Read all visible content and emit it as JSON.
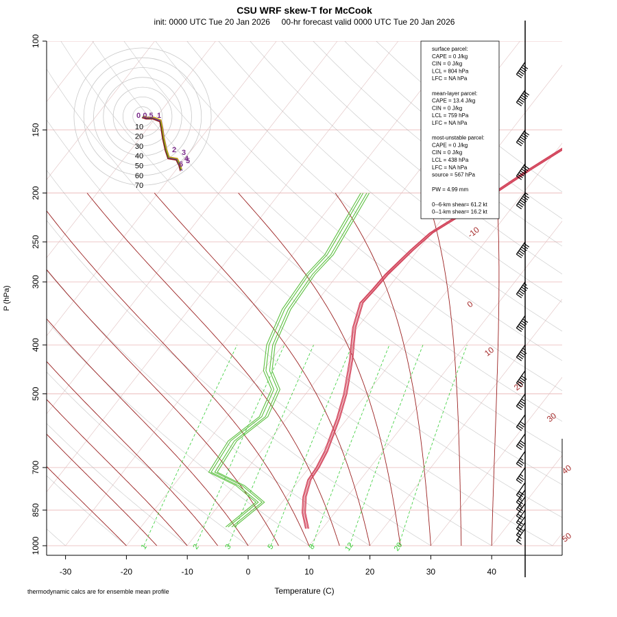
{
  "title": "CSU WRF skew-T for McCook",
  "subtitle": "init: 0000 UTC Tue 20 Jan 2026     00-hr forecast valid 0000 UTC Tue 20 Jan 2026",
  "footnote": "thermodynamic calcs are for ensemble mean profile",
  "colors": {
    "temperature": "#d2435a",
    "dewpoint": "#5bbf3f",
    "isotherm": "#a52a2a",
    "mixing_ratio": "#33cc33",
    "dry_adiabat": "#a0a0a0"
  },
  "stats": [
    "surface parcel:",
    "CAPE = 0 J/kg",
    "CIN = 0 J/kg",
    "LCL = 804 hPa",
    "LFC = NA hPa",
    "",
    "mean-layer parcel:",
    "CAPE = 13.4 J/kg",
    "CIN = 0 J/kg",
    "LCL = 759 hPa",
    "LFC = NA hPa",
    "",
    "most-unstable parcel:",
    "CAPE = 0 J/kg",
    "CIN = 0 J/kg",
    "LCL = 438 hPa",
    "LFC = NA hPa",
    "source = 567 hPa",
    "",
    "PW =  4.99 mm",
    "",
    "0--6-km shear= 61.2 kt",
    "0--1-km shear= 16.2 kt"
  ],
  "hodograph": {
    "ring_labels": [
      "10",
      "20",
      "30",
      "40",
      "50",
      "60",
      "70"
    ],
    "height_labels": [
      "0",
      "0.5",
      "1",
      "2",
      "3",
      "4",
      "5",
      "6"
    ]
  },
  "chart_data": {
    "type": "line",
    "xlabel": "Temperature (C)",
    "ylabel": "P (hPa)",
    "xlim": [
      -33,
      45
    ],
    "ylim": [
      1000,
      100
    ],
    "y_scale": "log",
    "x_ticks": [
      -30,
      -20,
      -10,
      0,
      10,
      20,
      30,
      40
    ],
    "y_ticks": [
      100,
      150,
      200,
      250,
      300,
      400,
      500,
      700,
      850,
      1000
    ],
    "isotherm_labels": [
      -10,
      0,
      10,
      20,
      30,
      40,
      50
    ],
    "mixing_ratio_labels": [
      "1",
      "2",
      "3",
      "5",
      "8",
      "12",
      "20"
    ],
    "series": [
      {
        "quantity": "temperature",
        "points": [
          [
            7.5,
            925
          ],
          [
            4.9,
            860
          ],
          [
            3.0,
            800
          ],
          [
            1.6,
            740
          ],
          [
            1.4,
            700
          ],
          [
            0.7,
            650
          ],
          [
            -1.5,
            560
          ],
          [
            -3.5,
            500
          ],
          [
            -6.8,
            430
          ],
          [
            -10.5,
            370
          ],
          [
            -12.5,
            330
          ],
          [
            -12.2,
            310
          ],
          [
            -12.0,
            290
          ],
          [
            -11.0,
            260
          ],
          [
            -10.0,
            240
          ],
          [
            -6.0,
            210
          ],
          [
            -2.0,
            180
          ],
          [
            2.0,
            157
          ],
          [
            4.5,
            141
          ],
          [
            7.0,
            129
          ],
          [
            10.5,
            118
          ],
          [
            13.0,
            111
          ]
        ]
      },
      {
        "quantity": "dewpoint",
        "points": [
          [
            -5.4,
            918
          ],
          [
            -3.6,
            820
          ],
          [
            -9.0,
            760
          ],
          [
            -15.2,
            715
          ],
          [
            -16.0,
            620
          ],
          [
            -14.0,
            555
          ],
          [
            -15.5,
            490
          ],
          [
            -19.2,
            450
          ],
          [
            -22.0,
            400
          ],
          [
            -24.0,
            340
          ],
          [
            -24.5,
            290
          ],
          [
            -24.0,
            265
          ],
          [
            -25.0,
            230
          ],
          [
            -26.0,
            200
          ]
        ]
      }
    ],
    "wind_barbs": [
      {
        "p": 925,
        "speed_kt": 15
      },
      {
        "p": 900,
        "speed_kt": 15
      },
      {
        "p": 875,
        "speed_kt": 20
      },
      {
        "p": 850,
        "speed_kt": 20
      },
      {
        "p": 825,
        "speed_kt": 20
      },
      {
        "p": 800,
        "speed_kt": 25
      },
      {
        "p": 775,
        "speed_kt": 25
      },
      {
        "p": 750,
        "speed_kt": 30
      },
      {
        "p": 700,
        "speed_kt": 35
      },
      {
        "p": 650,
        "speed_kt": 35
      },
      {
        "p": 600,
        "speed_kt": 40
      },
      {
        "p": 550,
        "speed_kt": 40
      },
      {
        "p": 500,
        "speed_kt": 45
      },
      {
        "p": 450,
        "speed_kt": 50
      },
      {
        "p": 400,
        "speed_kt": 55
      },
      {
        "p": 350,
        "speed_kt": 60
      },
      {
        "p": 300,
        "speed_kt": 65
      },
      {
        "p": 250,
        "speed_kt": 70
      },
      {
        "p": 200,
        "speed_kt": 75
      },
      {
        "p": 175,
        "speed_kt": 70
      },
      {
        "p": 150,
        "speed_kt": 70
      },
      {
        "p": 125,
        "speed_kt": 70
      },
      {
        "p": 110,
        "speed_kt": 60
      }
    ]
  }
}
